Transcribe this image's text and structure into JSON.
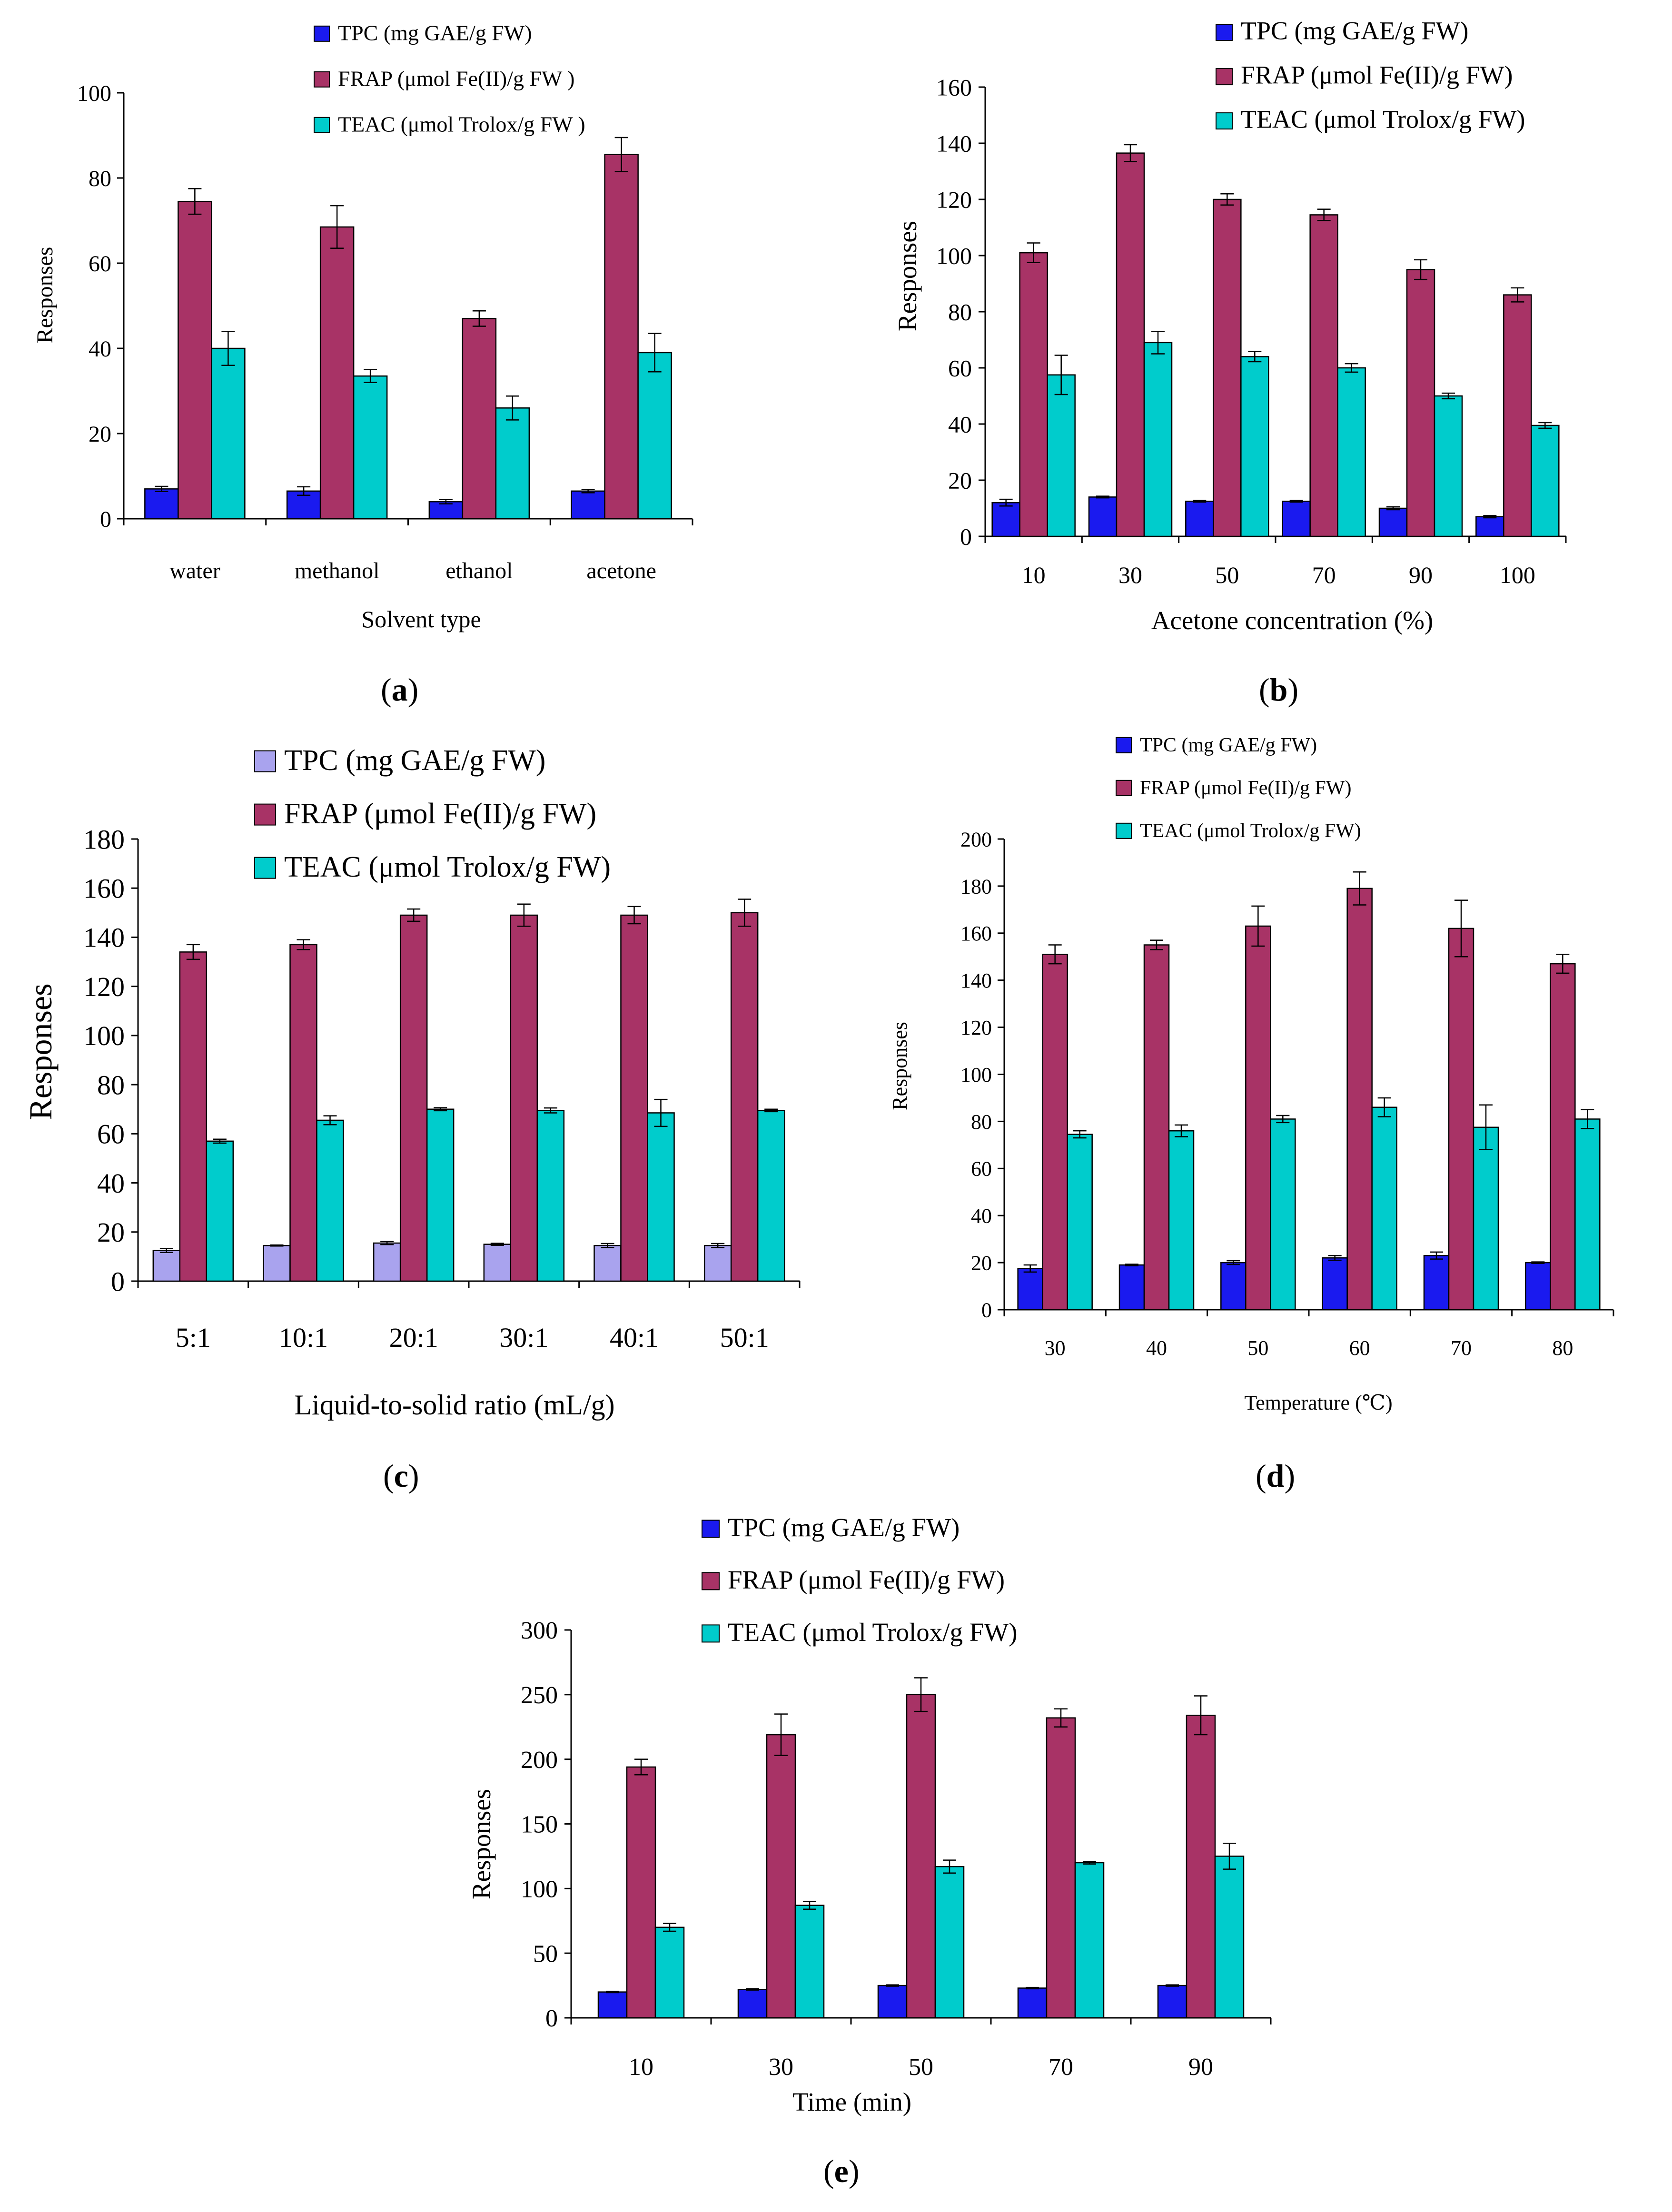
{
  "figure": {
    "colors": {
      "TPC": "#1a1aef",
      "TPC_light": "#a9a3ee",
      "FRAP": "#a83366",
      "TEAC": "#00cccc",
      "axis": "#000000"
    }
  },
  "chart_data": [
    {
      "id": "a",
      "type": "bar",
      "panel_label": "a",
      "xlabel": "Solvent type",
      "ylabel": "Responses",
      "ylim": [
        0,
        100
      ],
      "yticks": [
        0,
        20,
        40,
        60,
        80,
        100
      ],
      "legend_position": "top",
      "categories": [
        "water",
        "methanol",
        "ethanol",
        "acetone"
      ],
      "series": [
        {
          "name": "TPC (mg GAE/g FW)",
          "values": [
            7,
            6.5,
            4,
            6.5
          ],
          "errors": [
            0.6,
            1,
            0.5,
            0.4
          ]
        },
        {
          "name": "FRAP (μmol Fe(II)/g FW )",
          "values": [
            74.5,
            68.5,
            47,
            85.5
          ],
          "errors": [
            3,
            5,
            1.8,
            4
          ]
        },
        {
          "name": "TEAC (μmol Trolox/g FW )",
          "values": [
            40,
            33.5,
            26,
            39
          ],
          "errors": [
            4,
            1.5,
            2.8,
            4.5
          ]
        }
      ]
    },
    {
      "id": "b",
      "type": "bar",
      "panel_label": "b",
      "xlabel": "Acetone concentration  (%)",
      "ylabel": "Responses",
      "ylim": [
        0,
        160
      ],
      "yticks": [
        0,
        20,
        40,
        60,
        80,
        100,
        120,
        140,
        160
      ],
      "legend_position": "top",
      "categories": [
        "10",
        "30",
        "50",
        "70",
        "90",
        "100"
      ],
      "series": [
        {
          "name": "TPC (mg GAE/g FW)",
          "values": [
            12,
            14,
            12.5,
            12.5,
            10,
            7
          ],
          "errors": [
            1.2,
            0.3,
            0.3,
            0.3,
            0.5,
            0.4
          ]
        },
        {
          "name": "FRAP (μmol Fe(II)/g FW)",
          "values": [
            101,
            136.5,
            120,
            114.5,
            95,
            86
          ],
          "errors": [
            3.5,
            3,
            2,
            2,
            3.5,
            2.5
          ]
        },
        {
          "name": "TEAC (μmol Trolox/g FW)",
          "values": [
            57.5,
            69,
            64,
            60,
            50,
            39.5
          ],
          "errors": [
            7,
            4,
            1.8,
            1.5,
            1,
            1
          ]
        }
      ]
    },
    {
      "id": "c",
      "type": "bar",
      "panel_label": "c",
      "xlabel": "Liquid-to-solid ratio (mL/g)",
      "ylabel": "Responses",
      "ylim": [
        0,
        180
      ],
      "yticks": [
        0,
        20,
        40,
        60,
        80,
        100,
        120,
        140,
        160,
        180
      ],
      "legend_position": "top",
      "categories": [
        "5:1",
        "10:1",
        "20:1",
        "30:1",
        "40:1",
        "50:1"
      ],
      "series": [
        {
          "name": "TPC (mg GAE/g FW)",
          "values": [
            12.5,
            14.5,
            15.5,
            15,
            14.5,
            14.5
          ],
          "errors": [
            0.8,
            0.2,
            0.6,
            0.4,
            0.8,
            0.8
          ]
        },
        {
          "name": "FRAP (μmol Fe(II)/g FW)",
          "values": [
            134,
            137,
            149,
            149,
            149,
            150
          ],
          "errors": [
            3,
            2,
            2.5,
            4.5,
            3.5,
            5.5
          ]
        },
        {
          "name": "TEAC (μmol Trolox/g FW)",
          "values": [
            57,
            65.5,
            70,
            69.5,
            68.5,
            69.5
          ],
          "errors": [
            0.8,
            1.8,
            0.6,
            1,
            5.5,
            0.5
          ]
        }
      ]
    },
    {
      "id": "d",
      "type": "bar",
      "panel_label": "d",
      "xlabel": "Temperature (℃)",
      "ylabel": "Responses",
      "ylim": [
        0,
        200
      ],
      "yticks": [
        0,
        20,
        40,
        60,
        80,
        100,
        120,
        140,
        160,
        180,
        200
      ],
      "legend_position": "top",
      "categories": [
        "30",
        "40",
        "50",
        "60",
        "70",
        "80"
      ],
      "series": [
        {
          "name": "TPC (mg GAE/g FW)",
          "values": [
            17.5,
            19,
            20,
            22,
            23,
            20
          ],
          "errors": [
            1.5,
            0.3,
            0.8,
            1,
            1.5,
            0.3
          ]
        },
        {
          "name": "FRAP (μmol Fe(II)/g FW)",
          "values": [
            151,
            155,
            163,
            179,
            162,
            147
          ],
          "errors": [
            4,
            2,
            8.5,
            7,
            12,
            4
          ]
        },
        {
          "name": "TEAC (μmol Trolox/g FW)",
          "values": [
            74.5,
            76,
            81,
            86,
            77.5,
            81
          ],
          "errors": [
            1.5,
            2.5,
            1.5,
            4,
            9.5,
            4
          ]
        }
      ]
    },
    {
      "id": "e",
      "type": "bar",
      "panel_label": "e",
      "xlabel": "Time (min)",
      "ylabel": "Responses",
      "ylim": [
        0,
        300
      ],
      "yticks": [
        0,
        50,
        100,
        150,
        200,
        250,
        300
      ],
      "legend_position": "top",
      "categories": [
        "10",
        "30",
        "50",
        "70",
        "90"
      ],
      "series": [
        {
          "name": "TPC (mg  GAE/g FW)",
          "values": [
            20,
            22,
            25,
            23,
            25
          ],
          "errors": [
            0.5,
            0.5,
            0.5,
            0.5,
            0.5
          ]
        },
        {
          "name": "FRAP (μmol Fe(II)/g FW)",
          "values": [
            194,
            219,
            250,
            232,
            234
          ],
          "errors": [
            6,
            16,
            13,
            7,
            15
          ]
        },
        {
          "name": "TEAC (μmol Trolox/g FW)",
          "values": [
            70,
            87,
            117,
            120,
            125
          ],
          "errors": [
            3,
            3,
            5,
            1,
            10
          ]
        }
      ]
    }
  ]
}
